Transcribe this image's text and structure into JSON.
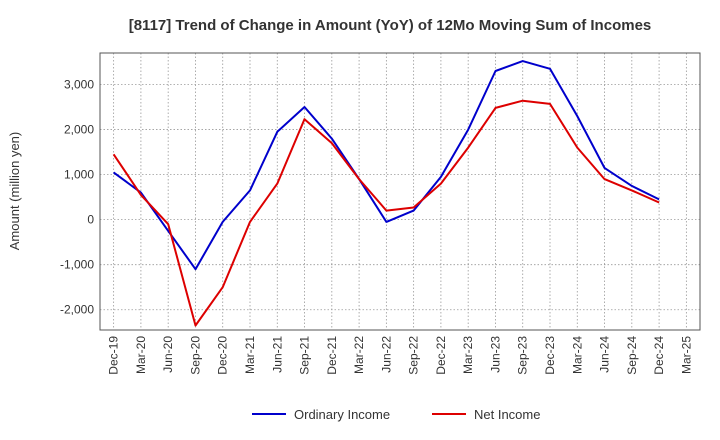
{
  "chart_data": {
    "type": "line",
    "title": "[8117]  Trend of Change in Amount (YoY) of 12Mo Moving Sum of Incomes",
    "xlabel": "",
    "ylabel": "Amount (million yen)",
    "categories": [
      "Dec-19",
      "Mar-20",
      "Jun-20",
      "Sep-20",
      "Dec-20",
      "Mar-21",
      "Jun-21",
      "Sep-21",
      "Dec-21",
      "Mar-22",
      "Jun-22",
      "Sep-22",
      "Dec-22",
      "Mar-23",
      "Jun-23",
      "Sep-23",
      "Dec-23",
      "Mar-24",
      "Jun-24",
      "Sep-24",
      "Dec-24",
      "Mar-25"
    ],
    "yticks": [
      -2000,
      -1000,
      0,
      1000,
      2000,
      3000
    ],
    "ytick_labels": [
      "-2,000",
      "-1,000",
      "0",
      "1,000",
      "2,000",
      "3,000"
    ],
    "ylim": [
      -2450,
      3700
    ],
    "grid": true,
    "legend_position": "bottom",
    "series": [
      {
        "name": "Ordinary Income",
        "color": "#0000cc",
        "values": [
          1050,
          600,
          -250,
          -1100,
          -50,
          650,
          1950,
          2500,
          1800,
          900,
          -50,
          200,
          950,
          2000,
          3300,
          3520,
          3350,
          2300,
          1150,
          750,
          450,
          null
        ]
      },
      {
        "name": "Net Income",
        "color": "#dd0000",
        "values": [
          1450,
          550,
          -100,
          -2350,
          -1500,
          -50,
          800,
          2230,
          1700,
          900,
          200,
          270,
          800,
          1600,
          2480,
          2640,
          2570,
          1600,
          900,
          650,
          380,
          null
        ]
      }
    ]
  }
}
